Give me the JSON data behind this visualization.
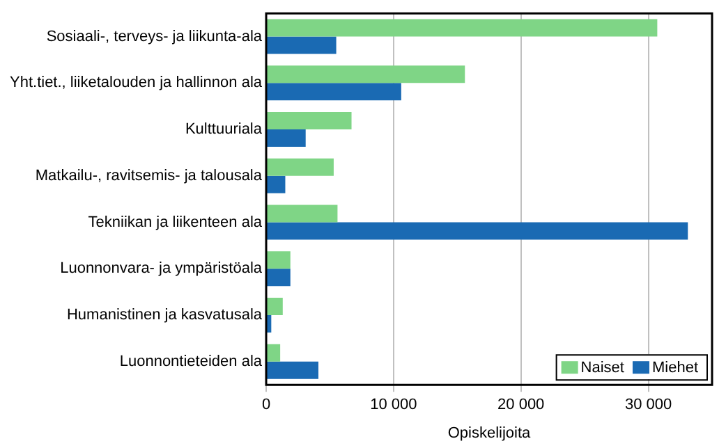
{
  "chart_data": {
    "type": "bar",
    "orientation": "horizontal",
    "xlabel": "Opiskelijoita",
    "categories": [
      "Sosiaali-, terveys- ja liikunta-ala",
      "Yht.tiet., liiketalouden ja hallinnon ala",
      "Kulttuuriala",
      "Matkailu-, ravitsemis- ja talousala",
      "Tekniikan ja liikenteen ala",
      "Luonnonvara- ja ympäristöala",
      "Humanistinen ja kasvatusala",
      "Luonnontieteiden ala"
    ],
    "series": [
      {
        "name": "Naiset",
        "color": "#7fd586",
        "values": [
          30700,
          15600,
          6700,
          5300,
          5600,
          1900,
          1300,
          1100
        ]
      },
      {
        "name": "Miehet",
        "color": "#1a6ab3",
        "values": [
          5500,
          10600,
          3100,
          1500,
          33100,
          1900,
          400,
          4100
        ]
      }
    ],
    "xlim": [
      0,
      35000
    ],
    "xticks": [
      {
        "value": 0,
        "label": "0"
      },
      {
        "value": 10000,
        "label": "10 000"
      },
      {
        "value": 20000,
        "label": "20 000"
      },
      {
        "value": 30000,
        "label": "30 000"
      }
    ],
    "grid": "x",
    "legend": "bottom right"
  }
}
